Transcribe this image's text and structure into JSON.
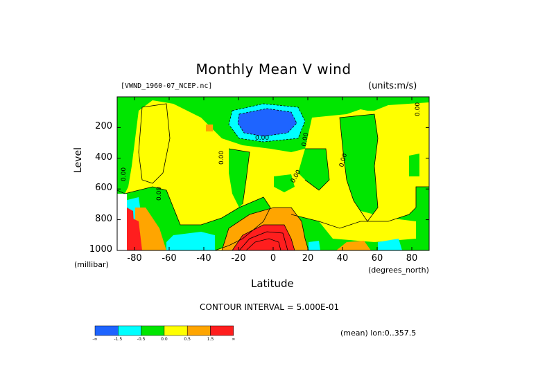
{
  "title": "Monthly Mean V wind",
  "source_label": "[VWND_1960-07_NCEP.nc]",
  "units_label": "(units:m/s)",
  "y_axis_label": "Level",
  "x_axis_label": "Latitude",
  "y_unit_label": "(millibar)",
  "x_unit_label": "(degrees_north)",
  "contour_interval_label": "CONTOUR INTERVAL = 5.000E-01",
  "mean_label": "(mean) lon:0..357.5",
  "chart_data": {
    "type": "heatmap",
    "title": "Monthly Mean V wind",
    "xlabel": "Latitude",
    "ylabel": "Level",
    "xlim": [
      -90,
      90
    ],
    "ylim": [
      1000,
      0
    ],
    "x_ticks": [
      "-80",
      "-60",
      "-40",
      "-20",
      "0",
      "20",
      "40",
      "60",
      "80"
    ],
    "y_ticks": [
      "200",
      "400",
      "600",
      "800",
      "1000"
    ],
    "contour_interval": 0.5,
    "contour_labels": [
      "0.00",
      "0.00",
      "0.00",
      "0.00",
      "0.00",
      "0.00",
      "0.00",
      "0.00"
    ],
    "colorbar": {
      "labels": [
        "-∞",
        "-1.5",
        "-0.5",
        "0.0",
        "0.5",
        "1.5",
        "∞"
      ],
      "colors": [
        "#1e64ff",
        "#00ffff",
        "#00e600",
        "#ffff00",
        "#ffa500",
        "#ff1e1e"
      ]
    }
  }
}
